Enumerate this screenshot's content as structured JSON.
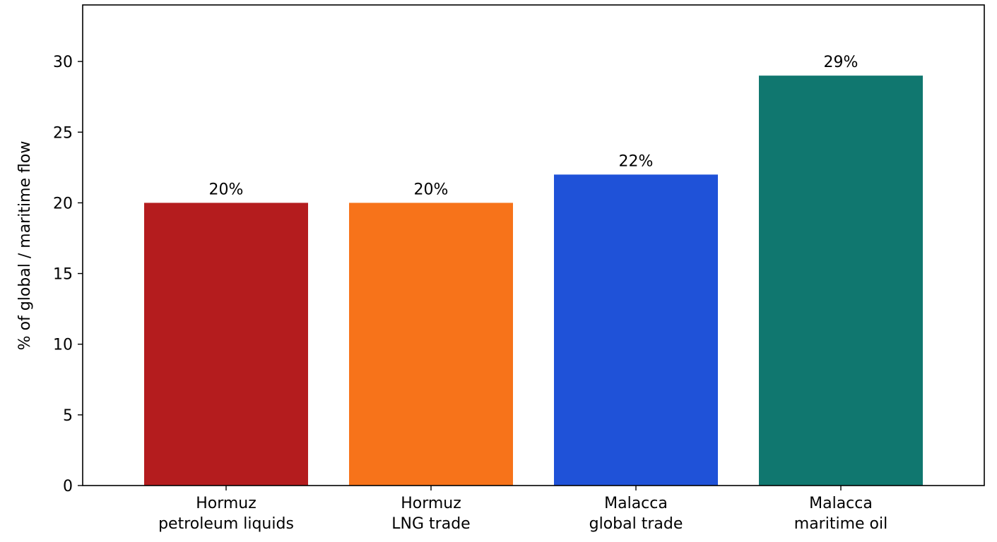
{
  "chart_data": {
    "type": "bar",
    "title": "",
    "xlabel": "",
    "ylabel": "% of global / maritime flow",
    "ylim": [
      0,
      34
    ],
    "yticks": [
      0,
      5,
      10,
      15,
      20,
      25,
      30
    ],
    "grid": false,
    "legend": "none",
    "categories": [
      [
        "Hormuz",
        "petroleum liquids"
      ],
      [
        "Hormuz",
        "LNG trade"
      ],
      [
        "Malacca",
        "global trade"
      ],
      [
        "Malacca",
        "maritime oil"
      ]
    ],
    "values": [
      20,
      20,
      22,
      29
    ],
    "data_labels": [
      "20%",
      "20%",
      "22%",
      "29%"
    ],
    "colors": [
      "#b41c1e",
      "#f7731a",
      "#1f52d8",
      "#10776f"
    ]
  }
}
